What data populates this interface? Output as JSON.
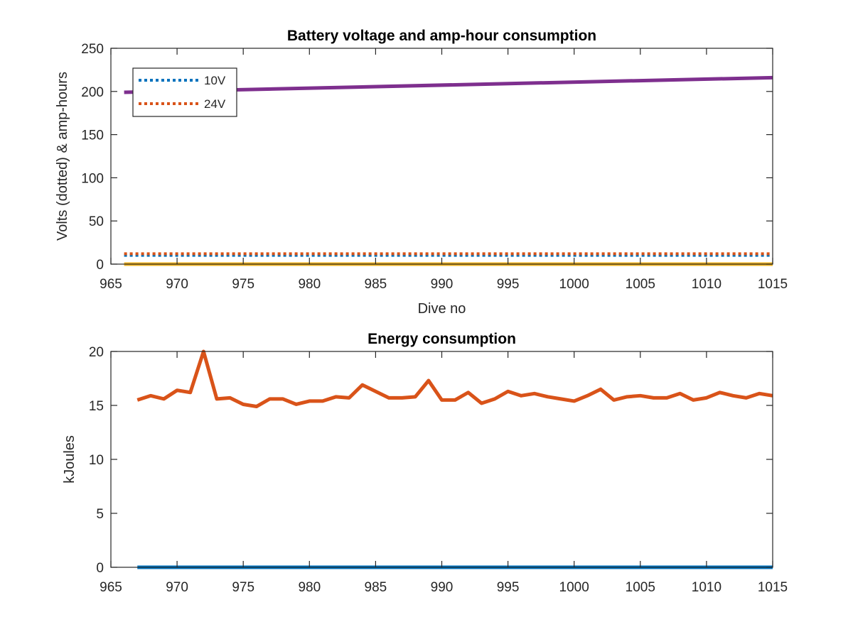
{
  "chart_data": [
    {
      "type": "line",
      "title": "Battery voltage and amp-hour consumption",
      "xlabel": "Dive no",
      "ylabel": "Volts (dotted) & amp-hours",
      "xlim": [
        965,
        1015
      ],
      "ylim": [
        0,
        250
      ],
      "xticks": [
        965,
        970,
        975,
        980,
        985,
        990,
        995,
        1000,
        1005,
        1010,
        1015
      ],
      "yticks": [
        0,
        50,
        100,
        150,
        200,
        250
      ],
      "grid": false,
      "legend_position": "top-left",
      "series": [
        {
          "name": "10V",
          "style": "dotted",
          "color": "#0072BD",
          "x": [
            966,
            1015
          ],
          "values": [
            10.2,
            10.2
          ]
        },
        {
          "name": "24V",
          "style": "dotted",
          "color": "#D95319",
          "x": [
            966,
            1015
          ],
          "values": [
            12.0,
            12.0
          ]
        },
        {
          "style": "solid",
          "color": "#EDB120",
          "x": [
            966,
            1015
          ],
          "values": [
            0,
            0
          ]
        },
        {
          "style": "solid",
          "color": "#7E2F8E",
          "x": [
            966,
            1015
          ],
          "values": [
            199,
            216
          ]
        }
      ]
    },
    {
      "type": "line",
      "title": "Energy consumption",
      "xlabel": "",
      "ylabel": "kJoules",
      "xlim": [
        965,
        1015
      ],
      "ylim": [
        0,
        20
      ],
      "xticks": [
        965,
        970,
        975,
        980,
        985,
        990,
        995,
        1000,
        1005,
        1010,
        1015
      ],
      "yticks": [
        0,
        5,
        10,
        15,
        20
      ],
      "grid": false,
      "series": [
        {
          "style": "solid",
          "color": "#0072BD",
          "x": [
            967,
            1015
          ],
          "values": [
            0,
            0
          ]
        },
        {
          "style": "solid",
          "color": "#D95319",
          "x": [
            967,
            968,
            969,
            970,
            971,
            972,
            973,
            974,
            975,
            976,
            977,
            978,
            979,
            980,
            981,
            982,
            983,
            984,
            985,
            986,
            987,
            988,
            989,
            990,
            991,
            992,
            993,
            994,
            995,
            996,
            997,
            998,
            999,
            1000,
            1001,
            1002,
            1003,
            1004,
            1005,
            1006,
            1007,
            1008,
            1009,
            1010,
            1011,
            1012,
            1013,
            1014,
            1015
          ],
          "values": [
            15.5,
            15.9,
            15.6,
            16.4,
            16.2,
            20.0,
            15.6,
            15.7,
            15.1,
            14.9,
            15.6,
            15.6,
            15.1,
            15.4,
            15.4,
            15.8,
            15.7,
            16.9,
            16.3,
            15.7,
            15.7,
            15.8,
            17.3,
            15.5,
            15.5,
            16.2,
            15.2,
            15.6,
            16.3,
            15.9,
            16.1,
            15.8,
            15.6,
            15.4,
            15.9,
            16.5,
            15.5,
            15.8,
            15.9,
            15.7,
            15.7,
            16.1,
            15.5,
            15.7,
            16.2,
            15.9,
            15.7,
            16.1,
            15.9
          ]
        }
      ]
    }
  ]
}
